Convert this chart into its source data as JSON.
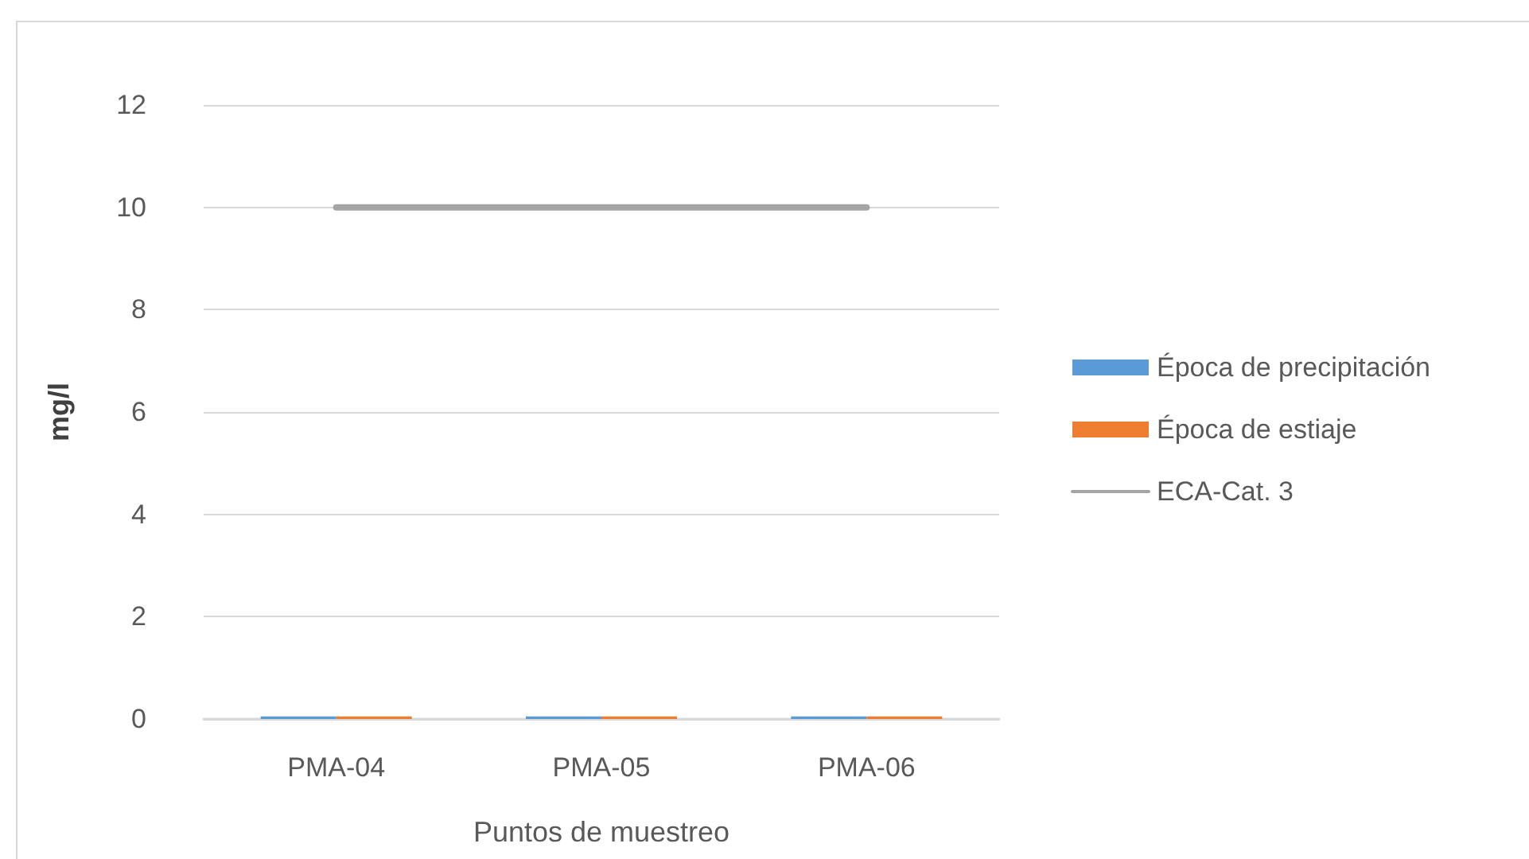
{
  "chart_data": {
    "type": "bar",
    "xlabel": "Puntos de muestreo",
    "ylabel": "mg/l",
    "categories": [
      "PMA-04",
      "PMA-05",
      "PMA-06"
    ],
    "series": [
      {
        "name": "Época de precipitación",
        "color": "#5b9bd5",
        "values": [
          0.05,
          0.05,
          0.05
        ]
      },
      {
        "name": "Época de estiaje",
        "color": "#ed7d31",
        "values": [
          0.05,
          0.05,
          0.05
        ]
      },
      {
        "name": "ECA-Cat. 3",
        "type": "line",
        "color": "#a5a5a5",
        "values": [
          10,
          10,
          10
        ]
      }
    ],
    "ylim": [
      0,
      12
    ],
    "yticks": [
      0,
      2,
      4,
      6,
      8,
      10,
      12
    ],
    "grid": "y",
    "legend": "right",
    "marker": "none"
  }
}
